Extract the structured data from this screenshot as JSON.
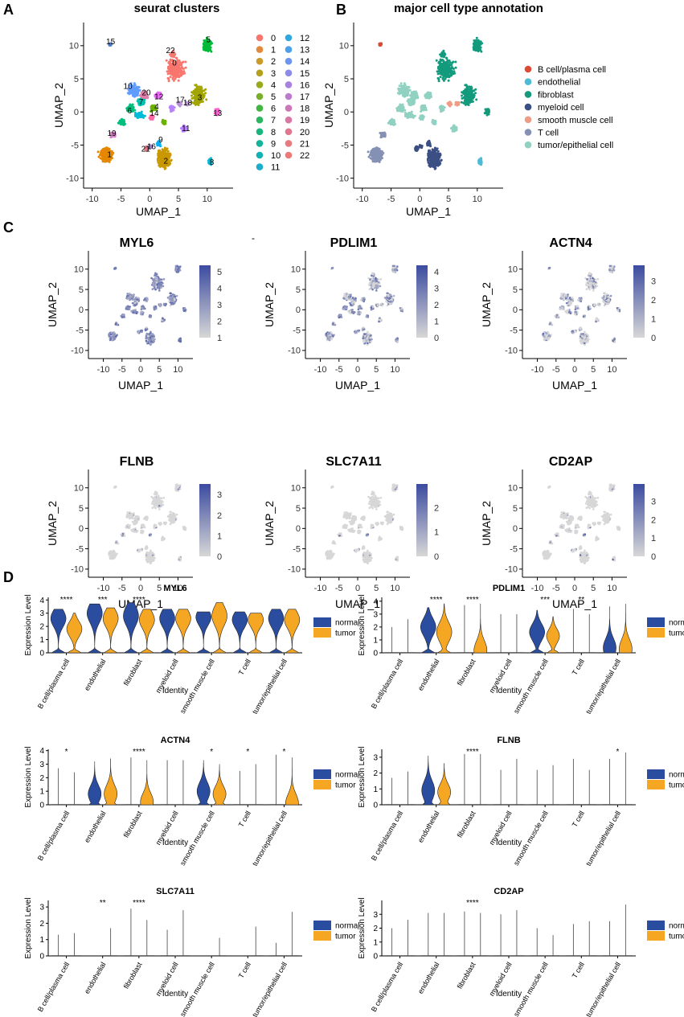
{
  "panels": {
    "A": {
      "letter": "A",
      "title": "seurat clusters"
    },
    "B": {
      "letter": "B",
      "title": "major cell type annotation"
    },
    "C": {
      "letter": "C"
    },
    "D": {
      "letter": "D"
    }
  },
  "umap": {
    "xlabel": "UMAP_1",
    "ylabel": "UMAP_2",
    "ab_xticks": [
      -10,
      -5,
      0,
      5,
      10
    ],
    "ab_yticks": [
      10,
      5,
      0,
      -5,
      -10
    ],
    "c_xticks": [
      -10,
      -5,
      0,
      5,
      10
    ],
    "c_yticks": [
      10,
      5,
      0,
      -5,
      -10
    ]
  },
  "clusters": {
    "labels": [
      "0",
      "1",
      "2",
      "3",
      "4",
      "5",
      "6",
      "7",
      "8",
      "9",
      "10",
      "11",
      "12",
      "13",
      "14",
      "15",
      "16",
      "17",
      "18",
      "19",
      "20",
      "21",
      "22"
    ],
    "colors": [
      "#F8766D",
      "#E58700",
      "#C99800",
      "#A3A500",
      "#6BB100",
      "#00BA38",
      "#00BF7D",
      "#00C0AF",
      "#00BCD8",
      "#00B0F6",
      "#619CFF",
      "#B983FF",
      "#E76BF3",
      "#FD61D1",
      "#FF67A4",
      "#4E7FD0",
      "#9C8AC8",
      "#B891D6",
      "#C59ADB",
      "#D681C9",
      "#E07FA9",
      "#E87B8C",
      "#F27870"
    ],
    "legend_colors": [
      "#F8766D",
      "#E28A3C",
      "#CA9A2A",
      "#B79F1E",
      "#9AAA1E",
      "#7AB029",
      "#42B541",
      "#2BB65F",
      "#18B67E",
      "#13B49A",
      "#12B2B4",
      "#1BADCB",
      "#30A7DE",
      "#4E9FE9",
      "#6E95EE",
      "#8D8BEA",
      "#A782DE",
      "#BC7BCD",
      "#CC77B8",
      "#D777A2",
      "#DF788E",
      "#E67A7E",
      "#EC7B77"
    ]
  },
  "celltypes": {
    "labels": [
      "B cell/plasma cell",
      "endothelial",
      "fibroblast",
      "myeloid cell",
      "smooth muscle cell",
      "T cell",
      "tumor/epithelial cell"
    ],
    "colors": [
      "#DC4A34",
      "#4DBBD5",
      "#139A7D",
      "#3B4F84",
      "#EF9C86",
      "#8491B4",
      "#91D1C2"
    ]
  },
  "feature_plots": [
    {
      "gene": "MYL6",
      "scale_ticks": [
        "5",
        "4",
        "3",
        "2",
        "1"
      ],
      "max": 5
    },
    {
      "gene": "PDLIM1",
      "scale_ticks": [
        "4",
        "3",
        "2",
        "1",
        "0"
      ],
      "max": 4
    },
    {
      "gene": "ACTN4",
      "scale_ticks": [
        "3",
        "2",
        "1",
        "0"
      ],
      "max": 3.5
    },
    {
      "gene": "FLNB",
      "scale_ticks": [
        "3",
        "2",
        "1",
        "0"
      ],
      "max": 3.2
    },
    {
      "gene": "SLC7A11",
      "scale_ticks": [
        "2",
        "1",
        "0"
      ],
      "max": 2.7
    },
    {
      "gene": "CD2AP",
      "scale_ticks": [
        "3",
        "2",
        "1",
        "0"
      ],
      "max": 3.6
    }
  ],
  "stray_mark": "-",
  "chart_data": [
    {
      "type": "violin",
      "title": "MYL6",
      "xlabel": "Identity",
      "ylabel": "Expression Level",
      "categories": [
        "B cell/plasma cell",
        "endothelial",
        "fibroblast",
        "myeloid cell",
        "smooth muscle cell",
        "T cell",
        "tumor/epithelial cell"
      ],
      "yticks": [
        0,
        1,
        2,
        3,
        4
      ],
      "ylim": [
        0,
        4.2
      ],
      "series": [
        {
          "name": "normal",
          "color": "#2A4DA0",
          "max": [
            3.3,
            3.7,
            3.8,
            3.3,
            3.1,
            3.1,
            3.3
          ],
          "median": [
            2.6,
            3.0,
            2.8,
            2.6,
            2.7,
            2.5,
            2.6
          ]
        },
        {
          "name": "tumor",
          "color": "#F5A623",
          "max": [
            3.0,
            3.4,
            3.3,
            3.3,
            3.8,
            3.0,
            3.3
          ],
          "median": [
            1.8,
            2.6,
            2.5,
            2.6,
            2.8,
            2.5,
            2.5
          ]
        }
      ],
      "significance": [
        "****",
        "***",
        "****",
        "",
        "",
        "",
        ""
      ],
      "legend": [
        "normal",
        "tumor"
      ]
    },
    {
      "type": "violin",
      "title": "PDLIM1",
      "xlabel": "Identity",
      "ylabel": "Expression Level",
      "categories": [
        "B cell/plasma cell",
        "endothelial",
        "fibroblast",
        "myeloid cell",
        "smooth muscle cell",
        "T cell",
        "tumor/epithelial cell"
      ],
      "yticks": [
        0,
        1,
        2,
        3,
        4
      ],
      "ylim": [
        0,
        4.3
      ],
      "series": [
        {
          "name": "normal",
          "color": "#2A4DA0",
          "max": [
            2.0,
            3.5,
            3.7,
            3.0,
            3.3,
            3.4,
            3.6
          ],
          "median": [
            0,
            2.0,
            0,
            0,
            1.6,
            0,
            0.4
          ]
        },
        {
          "name": "tumor",
          "color": "#F5A623",
          "max": [
            2.6,
            3.8,
            3.8,
            3.0,
            2.8,
            3.0,
            3.8
          ],
          "median": [
            0,
            1.6,
            0.2,
            0,
            1.3,
            0,
            0.3
          ]
        }
      ],
      "significance": [
        "",
        "****",
        "****",
        "",
        "***",
        "**",
        ""
      ],
      "legend": [
        "normal",
        "tumor"
      ]
    },
    {
      "type": "violin",
      "title": "ACTN4",
      "xlabel": "Identity",
      "ylabel": "Expression Level",
      "categories": [
        "B cell/plasma cell",
        "endothelial",
        "fibroblast",
        "myeloid cell",
        "smooth muscle cell",
        "T cell",
        "tumor/epithelial cell"
      ],
      "yticks": [
        0,
        1,
        2,
        3,
        4
      ],
      "ylim": [
        0,
        4.1
      ],
      "series": [
        {
          "name": "normal",
          "color": "#2A4DA0",
          "max": [
            2.7,
            3.2,
            3.5,
            3.3,
            3.3,
            2.5,
            3.7
          ],
          "median": [
            0,
            0.8,
            0,
            0,
            1.0,
            0,
            0
          ]
        },
        {
          "name": "tumor",
          "color": "#F5A623",
          "max": [
            2.4,
            3.4,
            3.3,
            3.3,
            3.0,
            3.0,
            3.5
          ],
          "median": [
            0,
            0.8,
            0.2,
            0,
            0.8,
            0,
            0.1
          ]
        }
      ],
      "significance": [
        "*",
        "",
        "****",
        "",
        "*",
        "*",
        "*"
      ],
      "legend": [
        "normal",
        "tumor"
      ]
    },
    {
      "type": "violin",
      "title": "FLNB",
      "xlabel": "Identity",
      "ylabel": "Expression Level",
      "categories": [
        "B cell/plasma cell",
        "endothelial",
        "fibroblast",
        "myeloid cell",
        "smooth muscle cell",
        "T cell",
        "tumor/epithelial cell"
      ],
      "yticks": [
        0,
        1,
        2,
        3
      ],
      "ylim": [
        0,
        3.5
      ],
      "series": [
        {
          "name": "normal",
          "color": "#2A4DA0",
          "max": [
            1.7,
            3.1,
            3.2,
            2.2,
            2.2,
            2.9,
            2.9
          ],
          "median": [
            0,
            0.9,
            0,
            0,
            0,
            0,
            0
          ]
        },
        {
          "name": "tumor",
          "color": "#F5A623",
          "max": [
            2.1,
            2.6,
            3.2,
            2.9,
            2.5,
            2.2,
            3.3
          ],
          "median": [
            0,
            0.8,
            0,
            0,
            0,
            0,
            0
          ]
        }
      ],
      "significance": [
        "",
        "",
        "****",
        "",
        "",
        "",
        "*"
      ],
      "legend": [
        "normal",
        "tumor"
      ]
    },
    {
      "type": "violin",
      "title": "SLC7A11",
      "xlabel": "Identity",
      "ylabel": "Expression Level",
      "categories": [
        "B cell/plasma cell",
        "endothelial",
        "fibroblast",
        "myeloid cell",
        "smooth muscle cell",
        "T cell",
        "tumor/epithelial cell"
      ],
      "yticks": [
        0,
        1,
        2,
        3
      ],
      "ylim": [
        0,
        3.4
      ],
      "series": [
        {
          "name": "normal",
          "color": "#2A4DA0",
          "max": [
            1.3,
            0,
            2.9,
            1.6,
            0,
            0,
            0.8
          ],
          "median": [
            0,
            0,
            0,
            0,
            0,
            0,
            0
          ]
        },
        {
          "name": "tumor",
          "color": "#F5A623",
          "max": [
            1.4,
            1.7,
            2.2,
            2.8,
            1.1,
            1.8,
            2.7
          ],
          "median": [
            0,
            0,
            0,
            0,
            0,
            0,
            0
          ]
        }
      ],
      "significance": [
        "",
        "**",
        "****",
        "",
        "",
        "",
        ""
      ],
      "legend": [
        "normal",
        "tumor"
      ]
    },
    {
      "type": "violin",
      "title": "CD2AP",
      "xlabel": "Identity",
      "ylabel": "Expression Level",
      "categories": [
        "B cell/plasma cell",
        "endothelial",
        "fibroblast",
        "myeloid cell",
        "smooth muscle cell",
        "T cell",
        "tumor/epithelial cell"
      ],
      "yticks": [
        0,
        1,
        2,
        3
      ],
      "ylim": [
        0,
        4.0
      ],
      "series": [
        {
          "name": "normal",
          "color": "#2A4DA0",
          "max": [
            2.0,
            3.1,
            3.2,
            3.0,
            2.0,
            2.3,
            2.5
          ],
          "median": [
            0,
            0,
            0,
            0,
            0,
            0,
            0
          ]
        },
        {
          "name": "tumor",
          "color": "#F5A623",
          "max": [
            2.6,
            3.1,
            3.1,
            3.3,
            1.5,
            2.5,
            3.7
          ],
          "median": [
            0,
            0,
            0,
            0,
            0,
            0,
            0
          ]
        }
      ],
      "significance": [
        "",
        "",
        "****",
        "",
        "",
        "",
        ""
      ],
      "legend": [
        "normal",
        "tumor"
      ]
    }
  ]
}
